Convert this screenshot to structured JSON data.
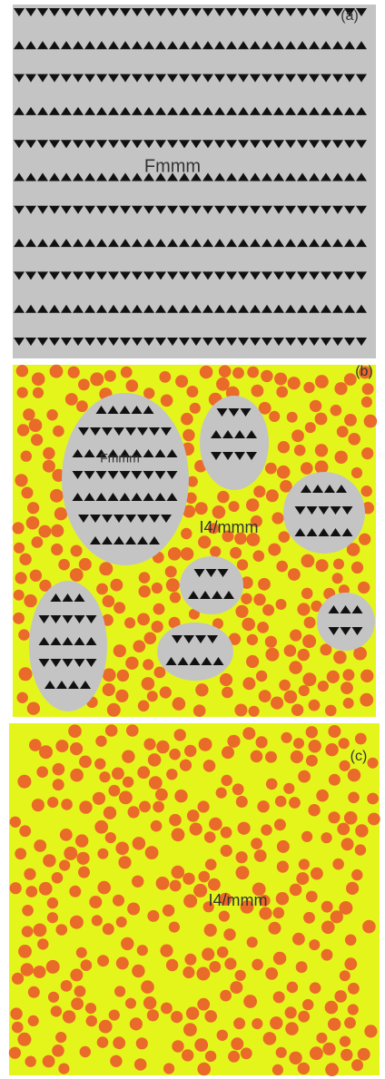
{
  "panel_a": {
    "label": "(a)",
    "phase": "Fmmm"
  },
  "panel_b": {
    "label": "(b)",
    "domain_phase": "Fmmm",
    "matrix_phase": "I4/mmm"
  },
  "panel_c": {
    "label": "(c)",
    "phase": "I4/mmm"
  }
}
